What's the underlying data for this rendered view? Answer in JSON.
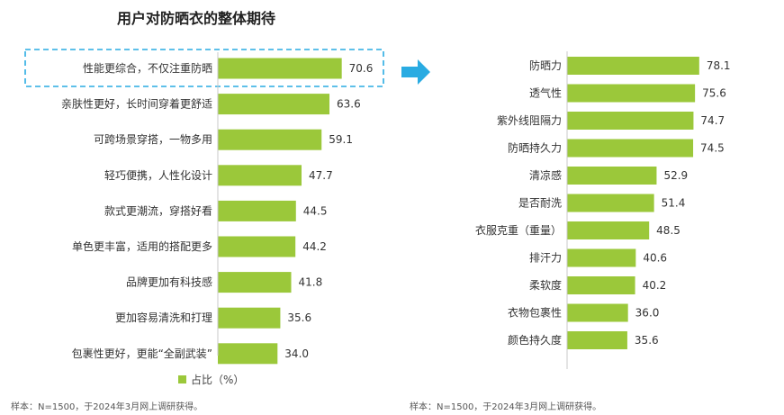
{
  "colors": {
    "bar": "#9BC83A",
    "arrow": "#29ABE2",
    "highlight_border": "#29ABE2",
    "axis": "#C8C8C8"
  },
  "chart_data": [
    {
      "type": "bar",
      "orientation": "horizontal",
      "title": "用户对防晒衣的整体期待",
      "categories": [
        "性能更综合，不仅注重防晒",
        "亲肤性更好，长时间穿着更舒适",
        "可跨场景穿搭，一物多用",
        "轻巧便携，人性化设计",
        "款式更潮流，穿搭好看",
        "单色更丰富，适用的搭配更多",
        "品牌更加有科技感",
        "更加容易清洗和打理",
        "包裹性更好，更能“全副武装”"
      ],
      "series": [
        {
          "name": "占比（%）",
          "values": [
            70.6,
            63.6,
            59.1,
            47.7,
            44.5,
            44.2,
            41.8,
            35.6,
            34.0
          ]
        }
      ],
      "value_labels": [
        "70.6",
        "63.6",
        "59.1",
        "47.7",
        "44.5",
        "44.2",
        "41.8",
        "35.6",
        "34.0"
      ],
      "highlighted_category": "性能更综合，不仅注重防晒",
      "legend": "bottom",
      "note": "样本：N=1500，于2024年3月网上调研获得。"
    },
    {
      "type": "bar",
      "orientation": "horizontal",
      "categories": [
        "防晒力",
        "透气性",
        "紫外线阻隔力",
        "防晒持久力",
        "清凉感",
        "是否耐洗",
        "衣服克重（重量）",
        "排汗力",
        "柔软度",
        "衣物包裹性",
        "颜色持久度"
      ],
      "series": [
        {
          "values": [
            78.1,
            75.6,
            74.7,
            74.5,
            52.9,
            51.4,
            48.5,
            40.6,
            40.2,
            36.0,
            35.6
          ]
        }
      ],
      "value_labels": [
        "78.1",
        "75.6",
        "74.7",
        "74.5",
        "52.9",
        "51.4",
        "48.5",
        "40.6",
        "40.2",
        "36.0",
        "35.6"
      ],
      "note": "样本：N=1500，于2024年3月网上调研获得。"
    }
  ]
}
